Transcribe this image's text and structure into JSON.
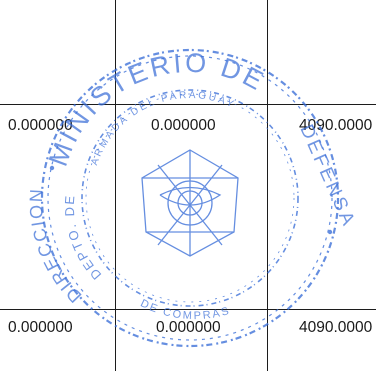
{
  "table": {
    "rows": [
      {
        "cells": [
          "0.000000",
          "0.000000",
          "4090.0000"
        ]
      },
      {
        "cells": [
          "0.000000",
          "0.000000",
          "4090.0000"
        ]
      }
    ]
  },
  "stamp": {
    "top_text": "MINISTERIO DE",
    "right_text": "DEFENSA",
    "inner_top_text": "ARMADA DEL PARAGUAY",
    "left_text": "DIRECCION",
    "inner_left_text": "DEPTO. DE",
    "bottom_text": "DE COMPRAS",
    "color": "#3b6fd8"
  }
}
